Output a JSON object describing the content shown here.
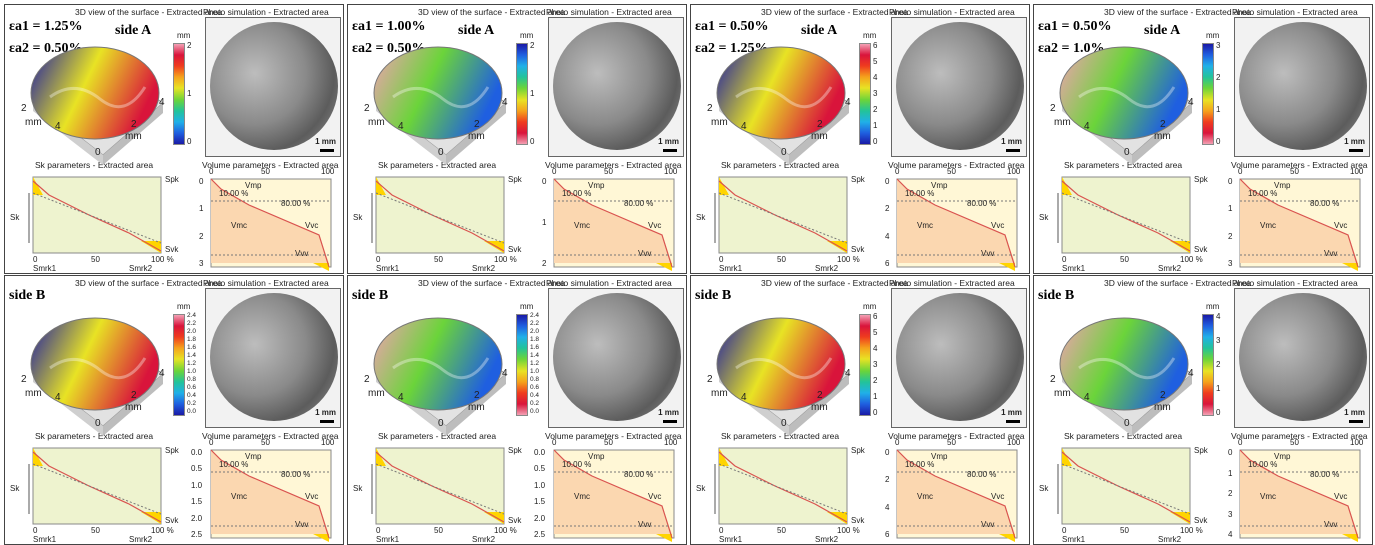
{
  "captions": {
    "view3d": "3D view of the surface - Extracted area",
    "photo": "Photo simulation - Extracted area",
    "sk": "Sk parameters - Extracted area",
    "vol": "Volume parameters - Extracted area"
  },
  "units": {
    "mm": "mm",
    "scale": "1 mm",
    "pct": "100 %"
  },
  "labels": {
    "spk": "Spk",
    "sk": "Sk",
    "svk": "Svk",
    "smrk1": "Smrk1",
    "smrk2": "Smrk2",
    "vmp": "Vmp",
    "vmc": "Vmc",
    "vvc": "Vvc",
    "vvv": "Vvv",
    "p10": "10.00 %",
    "p80": "80.00 %"
  },
  "axis_ticks": {
    "x": [
      "0",
      "50",
      "100"
    ],
    "iso": [
      "2",
      "4",
      "0",
      "2",
      "4"
    ]
  },
  "panels": [
    {
      "label": "side A",
      "strain1": "εa1 = 1.25%",
      "strain2": "εa2 = 0.50%",
      "color_ticks": [
        "0",
        "1",
        "2"
      ],
      "vol_ticks": [
        "0",
        "1",
        "2",
        "3"
      ]
    },
    {
      "label": "side A",
      "strain1": "εa1 = 1.00%",
      "strain2": "εa2 = 0.50%",
      "color_ticks": [
        "0",
        "1",
        "2"
      ],
      "vol_ticks": [
        "0",
        "1",
        "2"
      ]
    },
    {
      "label": "side A",
      "strain1": "εa1 = 0.50%",
      "strain2": "εa2 = 1.25%",
      "color_ticks": [
        "0",
        "1",
        "2",
        "3",
        "4",
        "5",
        "6"
      ],
      "vol_ticks": [
        "0",
        "2",
        "4",
        "6"
      ]
    },
    {
      "label": "side A",
      "strain1": "εa1 = 0.50%",
      "strain2": "εa2 = 1.0%",
      "color_ticks": [
        "0",
        "1",
        "2",
        "3"
      ],
      "vol_ticks": [
        "0",
        "1",
        "2",
        "3"
      ]
    },
    {
      "label": "side B",
      "strain1": "",
      "strain2": "",
      "color_ticks": [
        "0.0",
        "0.2",
        "0.4",
        "0.6",
        "0.8",
        "1.0",
        "1.2",
        "1.4",
        "1.6",
        "1.8",
        "2.0",
        "2.2",
        "2.4"
      ],
      "vol_ticks": [
        "0.0",
        "0.5",
        "1.0",
        "1.5",
        "2.0",
        "2.5"
      ]
    },
    {
      "label": "side B",
      "strain1": "",
      "strain2": "",
      "color_ticks": [
        "0.0",
        "0.2",
        "0.4",
        "0.6",
        "0.8",
        "1.0",
        "1.2",
        "1.4",
        "1.6",
        "1.8",
        "2.0",
        "2.2",
        "2.4"
      ],
      "vol_ticks": [
        "0.0",
        "0.5",
        "1.0",
        "1.5",
        "2.0",
        "2.5"
      ]
    },
    {
      "label": "side B",
      "strain1": "",
      "strain2": "",
      "color_ticks": [
        "0",
        "1",
        "2",
        "3",
        "4",
        "5",
        "6"
      ],
      "vol_ticks": [
        "0",
        "2",
        "4",
        "6"
      ]
    },
    {
      "label": "side B",
      "strain1": "",
      "strain2": "",
      "color_ticks": [
        "0",
        "1",
        "2",
        "3",
        "4"
      ],
      "vol_ticks": [
        "0",
        "1",
        "2",
        "3",
        "4"
      ]
    }
  ]
}
